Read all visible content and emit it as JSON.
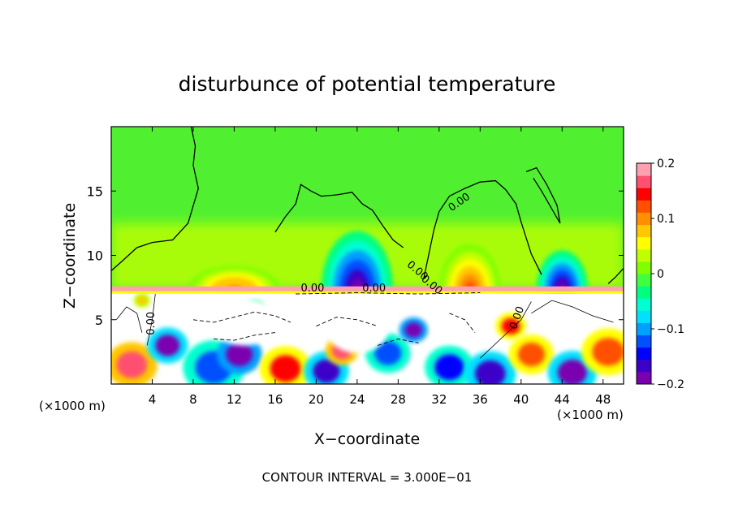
{
  "chart_data": {
    "type": "heatmap",
    "title": "disturbunce of potential temperature",
    "xlabel": "X−coordinate",
    "ylabel": "Z−coordinate",
    "x_unit_left": "(×1000 m)",
    "x_unit_right": "(×1000 m)",
    "footer": "CONTOUR INTERVAL = 3.000E−01",
    "xlim": [
      0,
      50
    ],
    "ylim": [
      0,
      20
    ],
    "x_ticks": [
      4,
      8,
      12,
      16,
      20,
      24,
      28,
      32,
      36,
      40,
      44,
      48
    ],
    "y_ticks": [
      5,
      10,
      15
    ],
    "contour_labels": [
      "0.00",
      "0.00",
      "0.00",
      "0.00",
      "0.00",
      "0.00"
    ],
    "colorbar": {
      "range": [
        -0.2,
        0.2
      ],
      "tick_values": [
        0.2,
        0.1,
        0,
        -0.1,
        -0.2
      ],
      "tick_labels": [
        "0.2",
        "0.1",
        "0",
        "−0.1",
        "−0.2"
      ],
      "colors": [
        "#7a00b0",
        "#3d00c8",
        "#0000ff",
        "#0050ff",
        "#00a0ff",
        "#00e0ff",
        "#00ffd0",
        "#00ff80",
        "#40ff40",
        "#80ff00",
        "#c0ff00",
        "#ffff00",
        "#ffc800",
        "#ff9000",
        "#ff5000",
        "#ff0000",
        "#ff5070",
        "#ffa0b0"
      ]
    },
    "features": [
      {
        "kind": "cold",
        "x": 24,
        "z": 9.5,
        "width": 7,
        "height": 4.5,
        "amplitude": -0.2
      },
      {
        "kind": "cold",
        "x": 44,
        "z": 8,
        "width": 5,
        "height": 3,
        "amplitude": -0.2
      },
      {
        "kind": "warm",
        "x": 35,
        "z": 8.5,
        "width": 6,
        "height": 3.5,
        "amplitude": 0.13
      },
      {
        "kind": "warm",
        "x": 12,
        "z": 8,
        "width": 9,
        "height": 1.8,
        "amplitude": 0.1
      },
      {
        "kind": "inversion",
        "z": 7.4,
        "amplitude": 0.18
      }
    ]
  }
}
